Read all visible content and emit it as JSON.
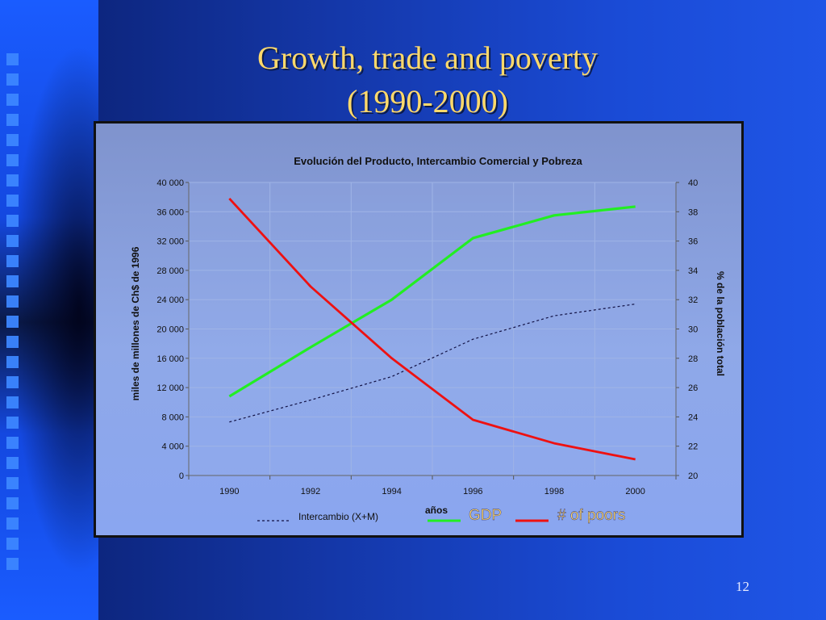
{
  "slide": {
    "title_line1": "Growth, trade and poverty",
    "title_line2": "(1990-2000)",
    "page_number": "12"
  },
  "colors": {
    "gdp": "#22ee22",
    "poor": "#ee1111",
    "trade": "#111144",
    "title": "#ffd96b"
  },
  "chart_data": {
    "type": "line",
    "title": "Evolución del Producto, Intercambio Comercial y Pobreza",
    "xlabel": "años",
    "ylabel_left": "miles de millones de Ch$ de 1996",
    "ylabel_right": "% de la población total",
    "x": [
      1990,
      1992,
      1994,
      1996,
      1998,
      2000
    ],
    "x_ticks": [
      "1990",
      "1992",
      "1994",
      "1996",
      "1998",
      "2000"
    ],
    "y_left_range": [
      0,
      40000
    ],
    "y_left_ticks": [
      "0",
      "4 000",
      "8 000",
      "12 000",
      "16 000",
      "20 000",
      "24 000",
      "28 000",
      "32 000",
      "36 000",
      "40 000"
    ],
    "y_right_range": [
      20,
      40
    ],
    "y_right_ticks": [
      "20",
      "22",
      "24",
      "26",
      "28",
      "30",
      "32",
      "34",
      "36",
      "38",
      "40"
    ],
    "grid": true,
    "series": [
      {
        "name": "Intercambio (X+M)",
        "axis": "left",
        "style": "dotted",
        "values": [
          7300,
          10300,
          13500,
          18600,
          21800,
          23400
        ]
      },
      {
        "name": "GDP",
        "axis": "left",
        "style": "solid",
        "values": [
          10800,
          17500,
          24000,
          32400,
          35500,
          36700
        ]
      },
      {
        "name": "# of poors",
        "axis": "right",
        "style": "solid",
        "values": [
          38.9,
          32.9,
          28.0,
          23.8,
          22.2,
          21.1
        ]
      }
    ]
  }
}
